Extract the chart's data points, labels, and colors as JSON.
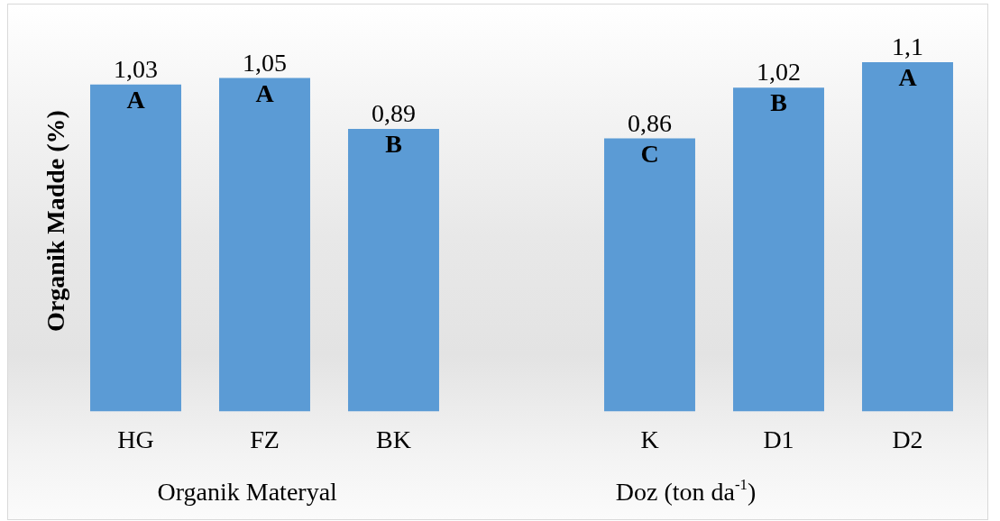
{
  "chart_data": [
    {
      "type": "bar",
      "ylabel": "Organik Madde (%)",
      "xlabel": "Organik Materyal",
      "categories": [
        "HG",
        "FZ",
        "BK"
      ],
      "values": [
        1.03,
        1.05,
        0.89
      ],
      "value_labels": [
        "1,03",
        "1,05",
        "0,89"
      ],
      "color": "#5b9bd5",
      "tick_labels": "x",
      "annotations": [
        {
          "text": "A",
          "x": "HG",
          "y": 1.03
        },
        {
          "text": "A",
          "x": "FZ",
          "y": 1.05
        },
        {
          "text": "B",
          "x": "BK",
          "y": 0.89
        }
      ]
    },
    {
      "type": "bar",
      "xlabel": "Doz (ton da$^{-1}$)",
      "categories": [
        "K",
        "D1",
        "D2"
      ],
      "values": [
        0.86,
        1.02,
        1.1
      ],
      "value_labels": [
        "0,86",
        "1,02",
        "1,1"
      ],
      "color": "#5b9bd5",
      "tick_labels": "x",
      "annotations": [
        {
          "text": "C",
          "x": "K",
          "y": 0.86
        },
        {
          "text": "B",
          "x": "D1",
          "y": 1.02
        },
        {
          "text": "A",
          "x": "D2",
          "y": 1.1
        }
      ]
    }
  ]
}
